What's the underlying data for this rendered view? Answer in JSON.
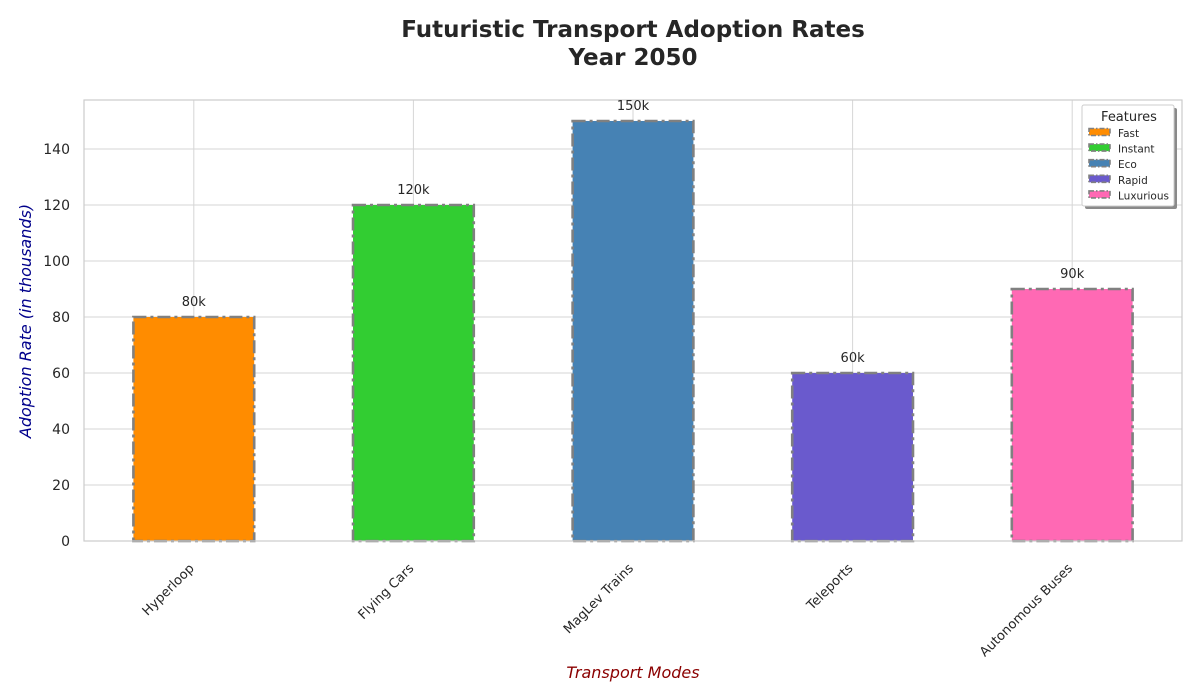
{
  "chart_data": {
    "type": "bar",
    "title": "Futuristic Transport Adoption Rates\nYear 2050",
    "xlabel": "Transport Modes",
    "ylabel": "Adoption Rate (in thousands)",
    "categories": [
      "Hyperloop",
      "Flying Cars",
      "MagLev Trains",
      "Teleports",
      "Autonomous Buses"
    ],
    "values": [
      80,
      120,
      150,
      60,
      90
    ],
    "data_labels": [
      "80k",
      "120k",
      "150k",
      "60k",
      "90k"
    ],
    "colors": [
      "#ff8c00",
      "#32cd32",
      "#4682b4",
      "#6a5acd",
      "#ff69b4"
    ],
    "edge_color": "#808080",
    "ylim": [
      0,
      157.5
    ],
    "yticks": [
      0,
      20,
      40,
      60,
      80,
      100,
      120,
      140
    ],
    "grid": true,
    "legend": {
      "title": "Features",
      "placement": "top-right",
      "entries": [
        "Fast",
        "Instant",
        "Eco",
        "Rapid",
        "Luxurious"
      ]
    }
  }
}
